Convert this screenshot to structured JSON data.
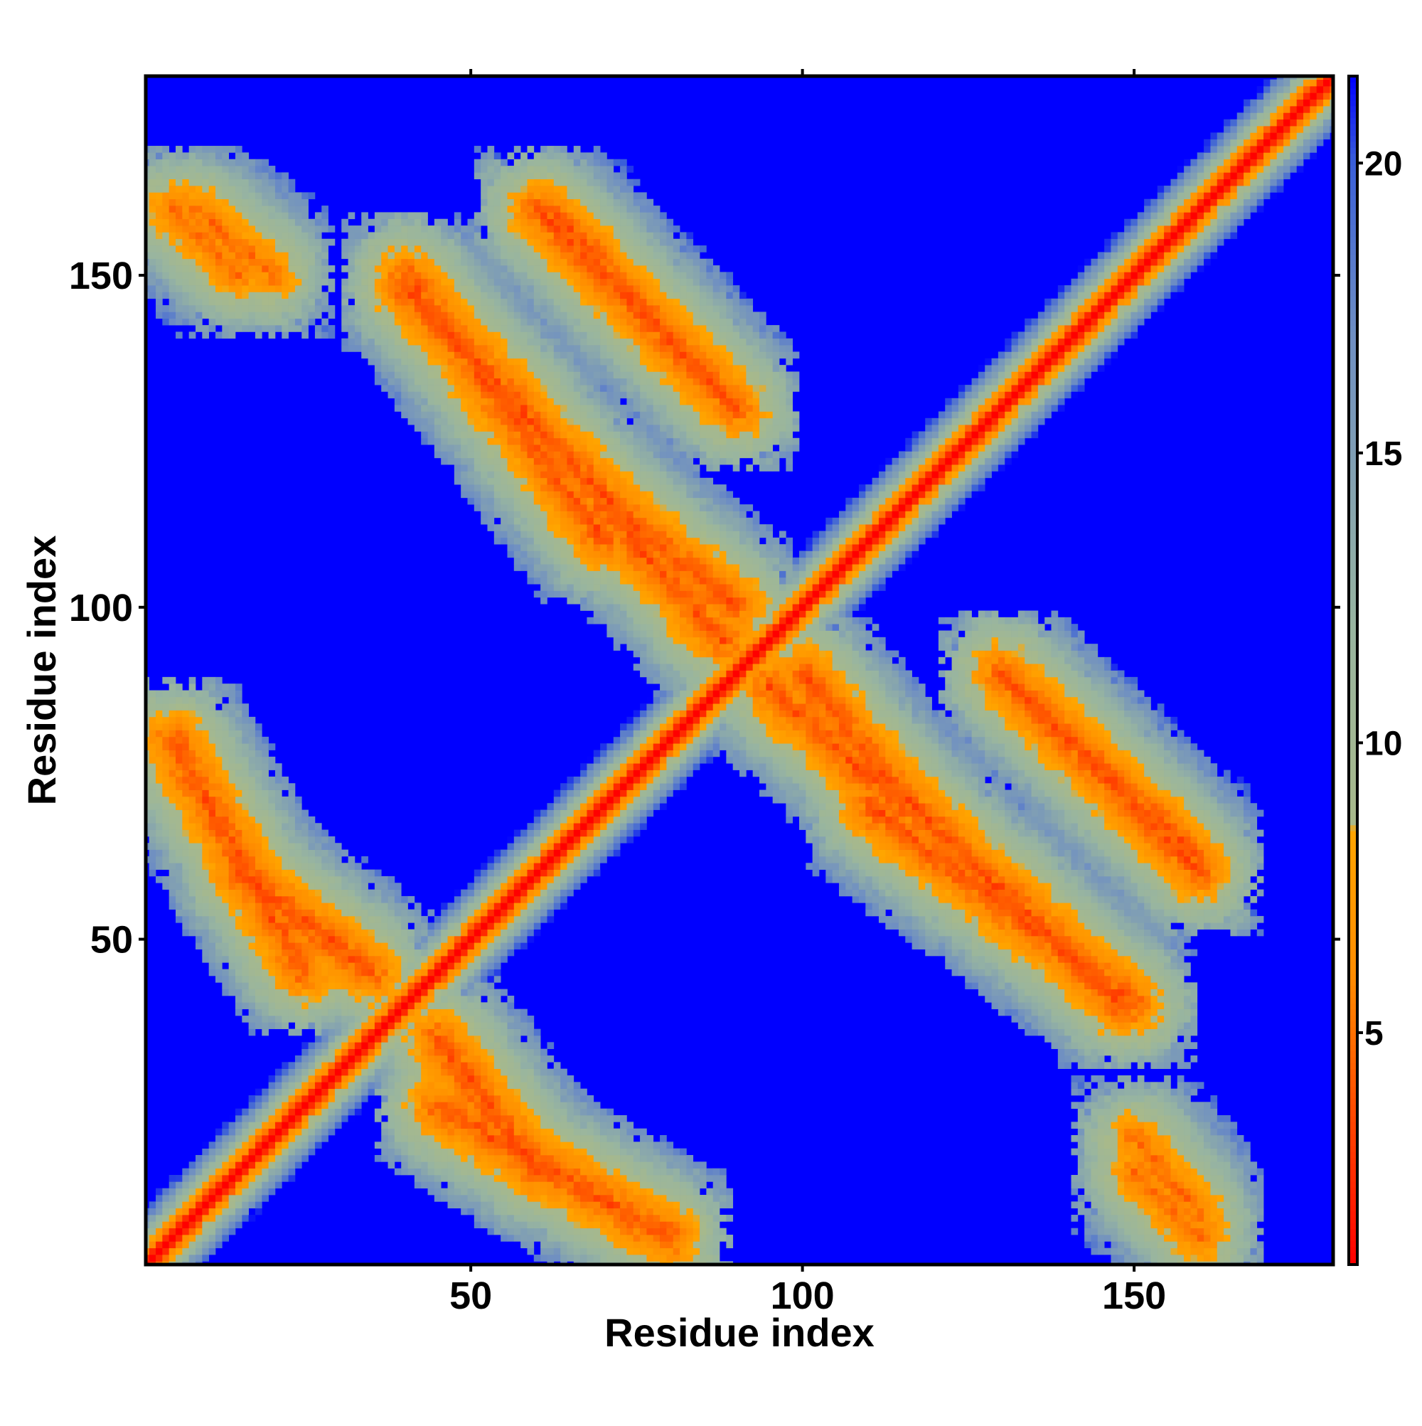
{
  "chart_data": {
    "type": "heatmap",
    "title": "",
    "xlabel": "Residue index",
    "ylabel": "Residue index",
    "xlim": [
      1,
      180
    ],
    "ylim": [
      1,
      180
    ],
    "x_ticks": [
      {
        "value": 50,
        "label": "50"
      },
      {
        "value": 100,
        "label": "100"
      },
      {
        "value": 150,
        "label": "150"
      }
    ],
    "y_ticks": [
      {
        "value": 50,
        "label": "50"
      },
      {
        "value": 100,
        "label": "100"
      },
      {
        "value": 150,
        "label": "150"
      }
    ],
    "colorbar": {
      "range": [
        1,
        21.5
      ],
      "ticks": [
        {
          "value": 5,
          "label": "5"
        },
        {
          "value": 10,
          "label": "10"
        },
        {
          "value": 15,
          "label": "15"
        },
        {
          "value": 20,
          "label": "20"
        }
      ],
      "stops": [
        {
          "value": 1,
          "color": "#ff0000"
        },
        {
          "value": 6,
          "color": "#ff8c00"
        },
        {
          "value": 8.5,
          "color": "#ffa500"
        },
        {
          "value": 8.6,
          "color": "#a8b98a"
        },
        {
          "value": 12,
          "color": "#98b5a0"
        },
        {
          "value": 17,
          "color": "#6f8fc2"
        },
        {
          "value": 20,
          "color": "#3a5fd8"
        },
        {
          "value": 21.5,
          "color": "#0000ff"
        }
      ]
    },
    "background_value": 21.5,
    "grid": false,
    "legend": "colorbar-right",
    "n_residues": 180,
    "contact_bands": [
      {
        "x": [
          2,
          180
        ],
        "y": [
          2,
          180
        ],
        "min_value": 1,
        "width": 1
      },
      {
        "x": [
          45,
          80
        ],
        "y": [
          25,
          5
        ],
        "min_value": 4,
        "width": 3
      },
      {
        "x": [
          62,
          88
        ],
        "y": [
          160,
          132
        ],
        "min_value": 4,
        "width": 2.5
      },
      {
        "x": [
          40,
          75
        ],
        "y": [
          148,
          112
        ],
        "min_value": 4,
        "width": 3
      },
      {
        "x": [
          75,
          90
        ],
        "y": [
          112,
          100
        ],
        "min_value": 4,
        "width": 3
      },
      {
        "x": [
          110,
          150
        ],
        "y": [
          70,
          40
        ],
        "min_value": 4,
        "width": 3
      },
      {
        "x": [
          130,
          160
        ],
        "y": [
          90,
          60
        ],
        "min_value": 4,
        "width": 3
      },
      {
        "x": [
          95,
          115
        ],
        "y": [
          88,
          70
        ],
        "min_value": 4,
        "width": 3
      },
      {
        "x": [
          15,
          35
        ],
        "y": [
          60,
          45
        ],
        "min_value": 4,
        "width": 3
      },
      {
        "x": [
          8,
          20
        ],
        "y": [
          160,
          150
        ],
        "min_value": 5,
        "width": 3
      },
      {
        "x": [
          150,
          160
        ],
        "y": [
          15,
          5
        ],
        "min_value": 5,
        "width": 3
      }
    ]
  }
}
